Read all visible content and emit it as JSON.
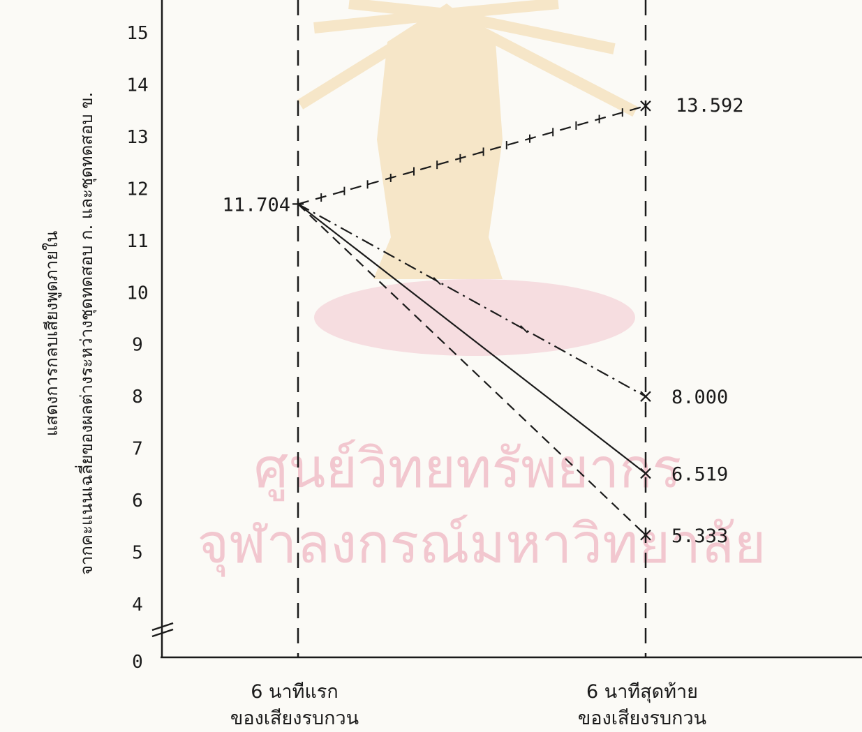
{
  "watermark": {
    "line1": "ศูนย์วิทยทรัพยากร",
    "line2": "จุฬาลงกรณ์มหาวิทยาลัย",
    "color": "#f2c7cf",
    "emblem_color": "#f6e6c8"
  },
  "chart_data": {
    "type": "line",
    "ylabel_line1": "แสดงการกลบเสียงพูดภายใน",
    "ylabel_line2": "จากคะแนนเฉลี่ยของผลต่างระหว่างชุดทดสอบ ก. และชุดทดสอบ ข.",
    "y_ticks": [
      "0",
      "4",
      "5",
      "6",
      "7",
      "8",
      "9",
      "10",
      "11",
      "12",
      "13",
      "14",
      "15"
    ],
    "y_axis_break": [
      0,
      4
    ],
    "ylim": [
      4,
      15.5
    ],
    "categories": [
      [
        "6 นาทีแรก",
        "ของเสียงรบกวน"
      ],
      [
        "6 นาทีสุดท้าย",
        "ของเสียงรบกวน"
      ]
    ],
    "start_label": "11.704",
    "series": [
      {
        "values": [
          11.704,
          13.592
        ],
        "end_label": "13.592",
        "style": "dashed-cross"
      },
      {
        "values": [
          11.704,
          8.0
        ],
        "end_label": "8.000",
        "style": "dashdot"
      },
      {
        "values": [
          11.704,
          6.519
        ],
        "end_label": "6.519",
        "style": "solid"
      },
      {
        "values": [
          11.704,
          5.333
        ],
        "end_label": "5.333",
        "style": "dashed"
      }
    ],
    "line_color": "#1a1a1a",
    "grid": false
  }
}
